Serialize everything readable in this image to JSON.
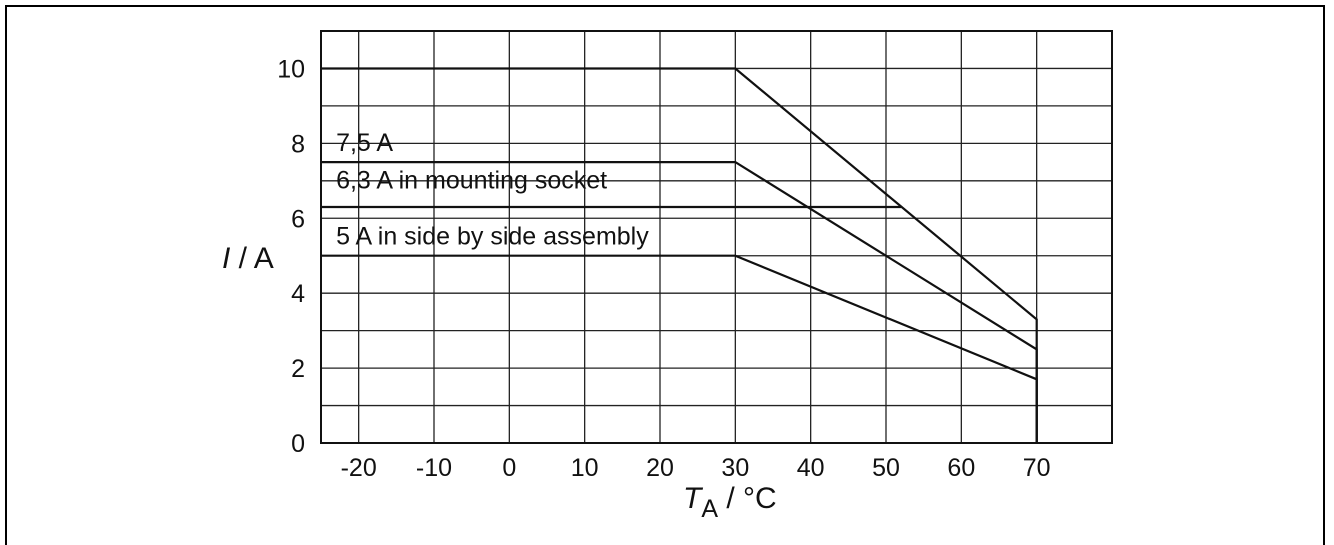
{
  "chart_data": {
    "type": "line",
    "title": "",
    "xlabel": {
      "symbol": "T",
      "subscript": "A",
      "unit": " / °C"
    },
    "ylabel": {
      "symbol": "I",
      "unit": " / A"
    },
    "xlim": [
      -25,
      80
    ],
    "ylim": [
      0,
      11
    ],
    "x_ticks": [
      -20,
      -10,
      0,
      10,
      20,
      30,
      40,
      50,
      60,
      70
    ],
    "x_tick_labels": [
      "-20",
      "-10",
      "0",
      "10",
      "20",
      "30",
      "40",
      "50",
      "60",
      "70"
    ],
    "y_ticks": [
      0,
      2,
      4,
      6,
      8,
      10
    ],
    "y_tick_labels": [
      "0",
      "2",
      "4",
      "6",
      "8",
      "10"
    ],
    "x_grid": [
      -20,
      -10,
      0,
      10,
      20,
      30,
      40,
      50,
      60,
      70
    ],
    "y_grid": [
      1,
      2,
      3,
      4,
      5,
      6,
      7,
      8,
      9,
      10
    ],
    "grid": true,
    "series": [
      {
        "name": "",
        "x": [
          -25,
          30,
          70,
          70
        ],
        "y": [
          10,
          10,
          3.3,
          0
        ]
      },
      {
        "name": "7,5 A",
        "x": [
          -25,
          30,
          70,
          70
        ],
        "y": [
          7.5,
          7.5,
          2.5,
          0
        ]
      },
      {
        "name": "6,3 A in mounting socket",
        "x": [
          -25,
          52
        ],
        "y": [
          6.3,
          6.3
        ]
      },
      {
        "name": "5 A in side by side assembly",
        "x": [
          -25,
          30,
          70,
          70
        ],
        "y": [
          5,
          5,
          1.7,
          0
        ]
      }
    ],
    "annotations": [
      {
        "text": "7,5 A",
        "x": -23,
        "y": 7.8
      },
      {
        "text": "6,3 A in mounting socket",
        "x": -23,
        "y": 6.8
      },
      {
        "text": "5 A in side by side assembly",
        "x": -23,
        "y": 5.3
      }
    ]
  }
}
